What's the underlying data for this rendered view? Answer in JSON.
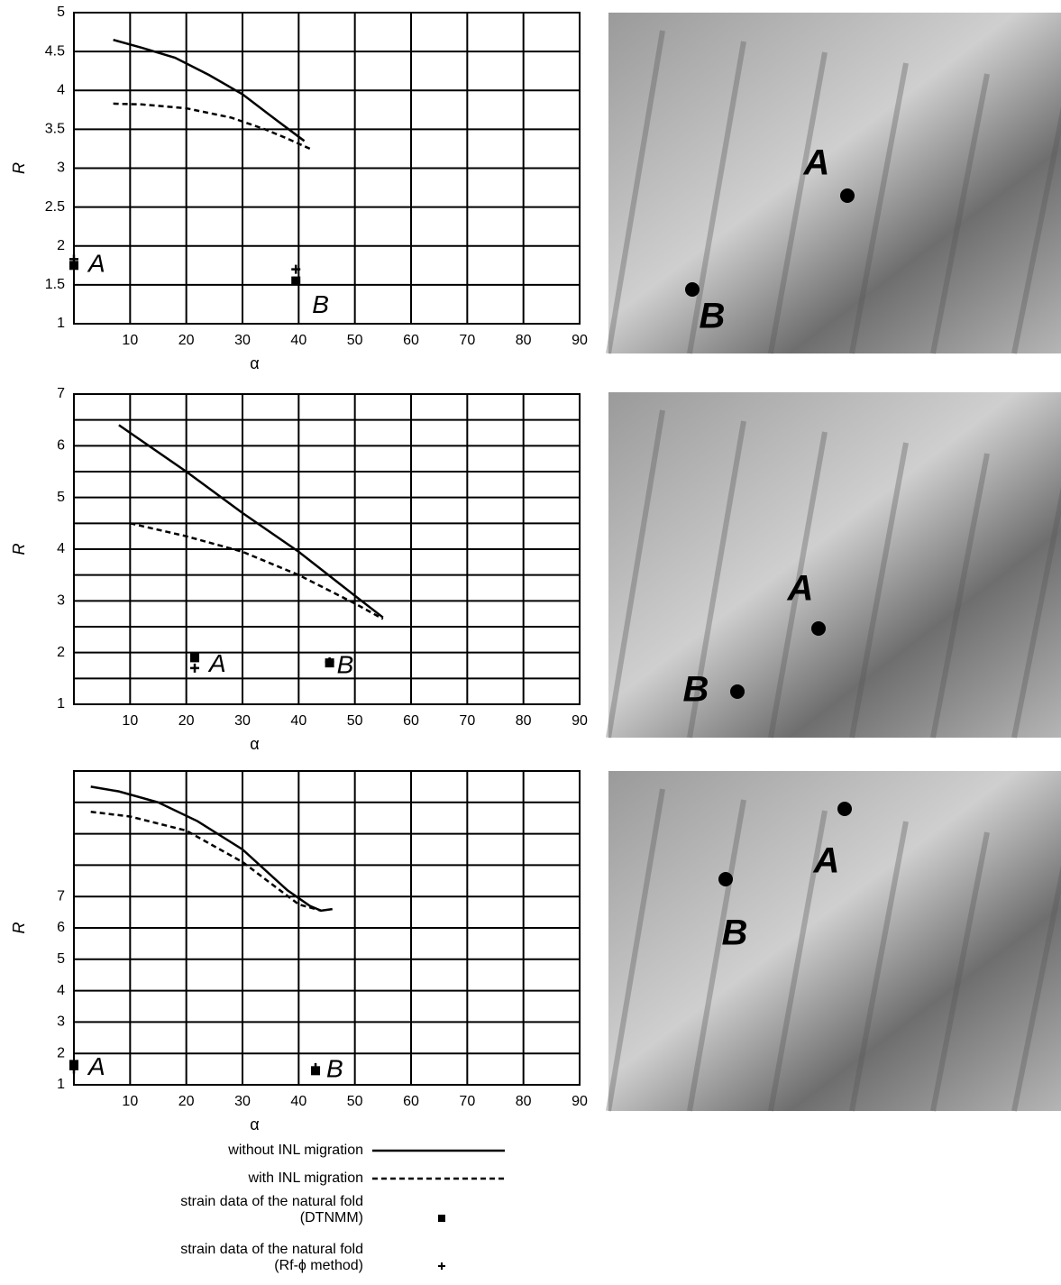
{
  "chart_data": [
    {
      "type": "line",
      "x_label": "α",
      "y_label": "R",
      "xlim": [
        0,
        90
      ],
      "xticks": [
        10,
        20,
        30,
        40,
        50,
        60,
        70,
        80,
        90
      ],
      "ylim": [
        1,
        5
      ],
      "yticks": [
        1,
        1.5,
        2,
        2.5,
        3,
        3.5,
        4,
        4.5,
        5
      ],
      "point_labels": [
        "A",
        "B"
      ],
      "series": [
        {
          "style": "solid",
          "x": [
            7,
            12,
            18,
            24,
            30,
            36,
            41
          ],
          "values": [
            4.65,
            4.55,
            4.42,
            4.2,
            3.95,
            3.62,
            3.35
          ]
        },
        {
          "style": "dashed",
          "x": [
            7,
            12,
            20,
            28,
            34,
            38,
            42
          ],
          "values": [
            3.83,
            3.82,
            3.77,
            3.65,
            3.5,
            3.38,
            3.25
          ]
        },
        {
          "style": "square",
          "x": [
            0,
            39.5
          ],
          "values": [
            1.75,
            1.55
          ]
        },
        {
          "style": "plus",
          "x": [
            0,
            39.5
          ],
          "values": [
            1.83,
            1.7
          ]
        }
      ]
    },
    {
      "type": "line",
      "x_label": "α",
      "y_label": "R",
      "xlim": [
        0,
        90
      ],
      "xticks": [
        10,
        20,
        30,
        40,
        50,
        60,
        70,
        80,
        90
      ],
      "ylim": [
        1,
        7
      ],
      "yticks": [
        1,
        2,
        3,
        4,
        5,
        6,
        7
      ],
      "ygrid": [
        1.5,
        2,
        2.5,
        3,
        3.5,
        4,
        4.5,
        5,
        5.5,
        6,
        6.5
      ],
      "point_labels": [
        "A",
        "B"
      ],
      "series": [
        {
          "style": "solid",
          "x": [
            8,
            20,
            30,
            40,
            50,
            55
          ],
          "values": [
            6.4,
            5.5,
            4.7,
            3.95,
            3.1,
            2.68
          ]
        },
        {
          "style": "dashed",
          "x": [
            10,
            20,
            30,
            40,
            50,
            55
          ],
          "values": [
            4.5,
            4.25,
            3.95,
            3.5,
            2.95,
            2.65
          ]
        },
        {
          "style": "square",
          "x": [
            21.5,
            45.5
          ],
          "values": [
            1.9,
            1.8
          ]
        },
        {
          "style": "plus",
          "x": [
            21.5,
            45.5
          ],
          "values": [
            1.7,
            1.82
          ]
        }
      ]
    },
    {
      "type": "line",
      "x_label": "α",
      "y_label": "R",
      "xlim": [
        0,
        90
      ],
      "xticks": [
        10,
        20,
        30,
        40,
        50,
        60,
        70,
        80,
        90
      ],
      "ylim": [
        1,
        11
      ],
      "yticks": [
        1,
        2,
        3,
        4,
        5,
        6,
        7
      ],
      "ygrid": [
        2,
        3,
        4,
        5,
        6,
        7,
        8,
        9,
        10
      ],
      "point_labels": [
        "A",
        "B"
      ],
      "series": [
        {
          "style": "solid",
          "x": [
            3,
            8,
            15,
            22,
            30,
            38,
            42,
            44,
            46
          ],
          "values": [
            10.5,
            10.35,
            10,
            9.4,
            8.5,
            7.2,
            6.7,
            6.55,
            6.6
          ]
        },
        {
          "style": "dashed",
          "x": [
            3,
            10,
            20,
            30,
            40,
            44
          ],
          "values": [
            9.7,
            9.55,
            9.1,
            8.1,
            6.75,
            6.55
          ]
        },
        {
          "style": "square",
          "x": [
            0,
            43
          ],
          "values": [
            1.65,
            1.45
          ]
        },
        {
          "style": "plus",
          "x": [
            0,
            43
          ],
          "values": [
            1.5,
            1.55
          ]
        }
      ]
    }
  ],
  "legend": [
    {
      "label": "without INL migration",
      "style": "solid"
    },
    {
      "label": "with INL migration",
      "style": "dashed"
    },
    {
      "label": "strain data of the natural fold\n(DTNMM)",
      "style": "square"
    },
    {
      "label": "strain data of the natural fold\n(Rf-ϕ method)",
      "style": "plus"
    }
  ],
  "photos": [
    [
      "A",
      "B"
    ],
    [
      "A",
      "B"
    ],
    [
      "A",
      "B"
    ]
  ]
}
